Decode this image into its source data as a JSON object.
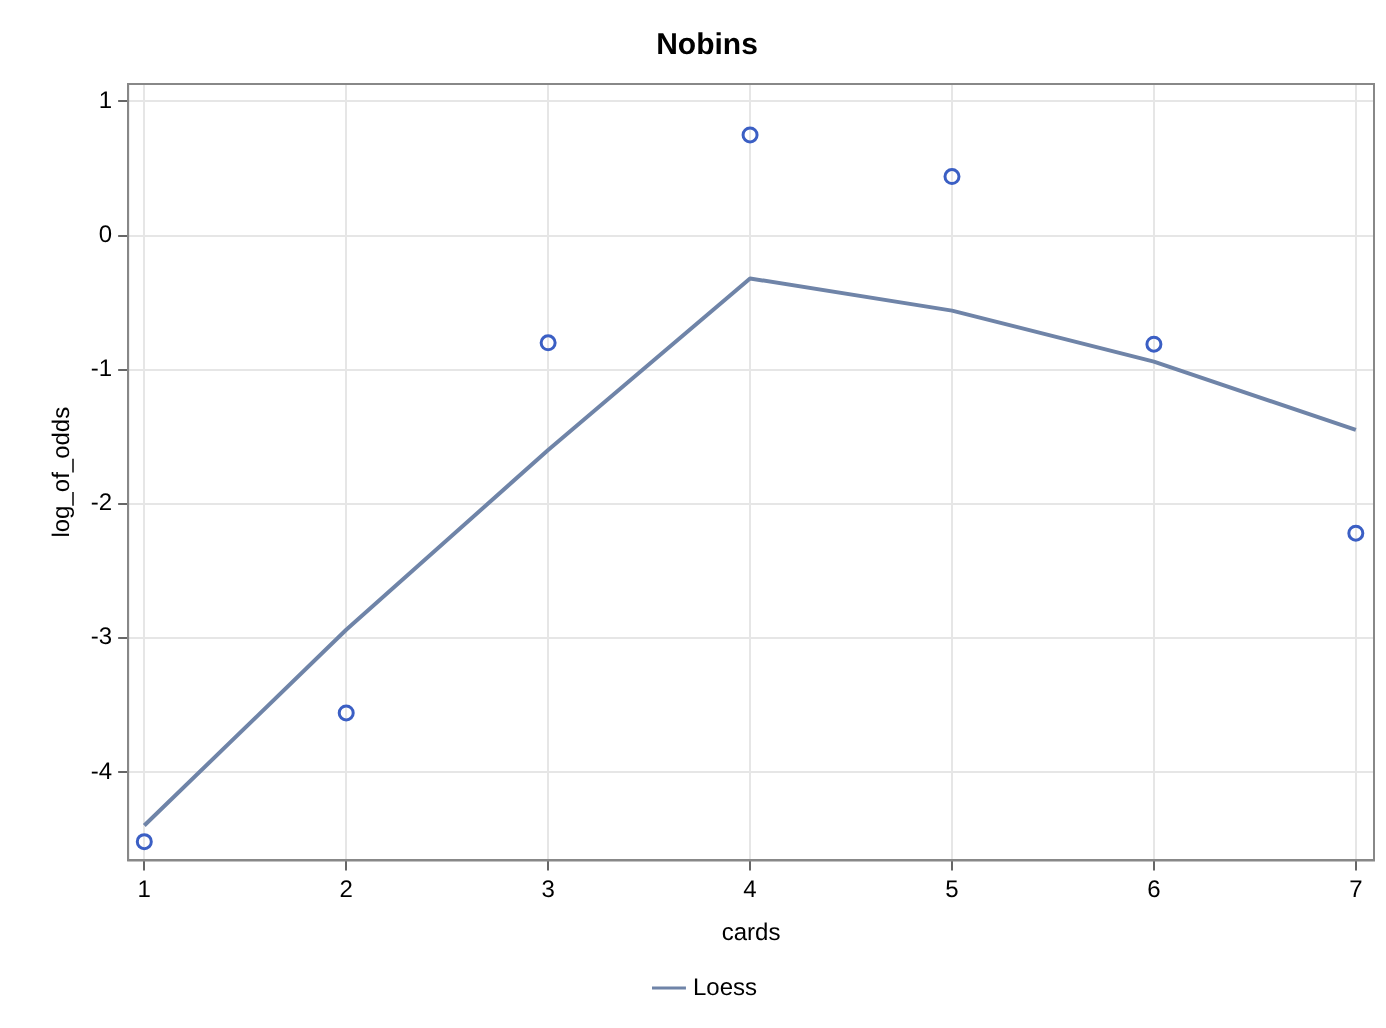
{
  "chart_data": {
    "type": "scatter",
    "title": "Nobins",
    "xlabel": "cards",
    "ylabel": "log_of_odds",
    "xlim": [
      0.92,
      7.09
    ],
    "xticks": [
      1,
      2,
      3,
      4,
      5,
      6,
      7
    ],
    "ylim": [
      -4.66,
      1.13
    ],
    "yticks": [
      -4,
      -3,
      -2,
      -1,
      0,
      1
    ],
    "grid": true,
    "legend": "bottom",
    "series": [
      {
        "type": "scatter",
        "color": "#3b5fc4",
        "marker": "circle",
        "x": [
          1,
          2,
          3,
          4,
          5,
          6,
          7
        ],
        "values": [
          -4.52,
          -3.56,
          -0.8,
          0.75,
          0.44,
          -0.81,
          -2.22
        ]
      },
      {
        "type": "line",
        "name": "Loess",
        "color": "#6f84a8",
        "marker": "none",
        "x": [
          1,
          2,
          3,
          4,
          5,
          6,
          7
        ],
        "values": [
          -4.4,
          -2.94,
          -1.6,
          -0.32,
          -0.56,
          -0.94,
          -1.45
        ]
      }
    ]
  }
}
